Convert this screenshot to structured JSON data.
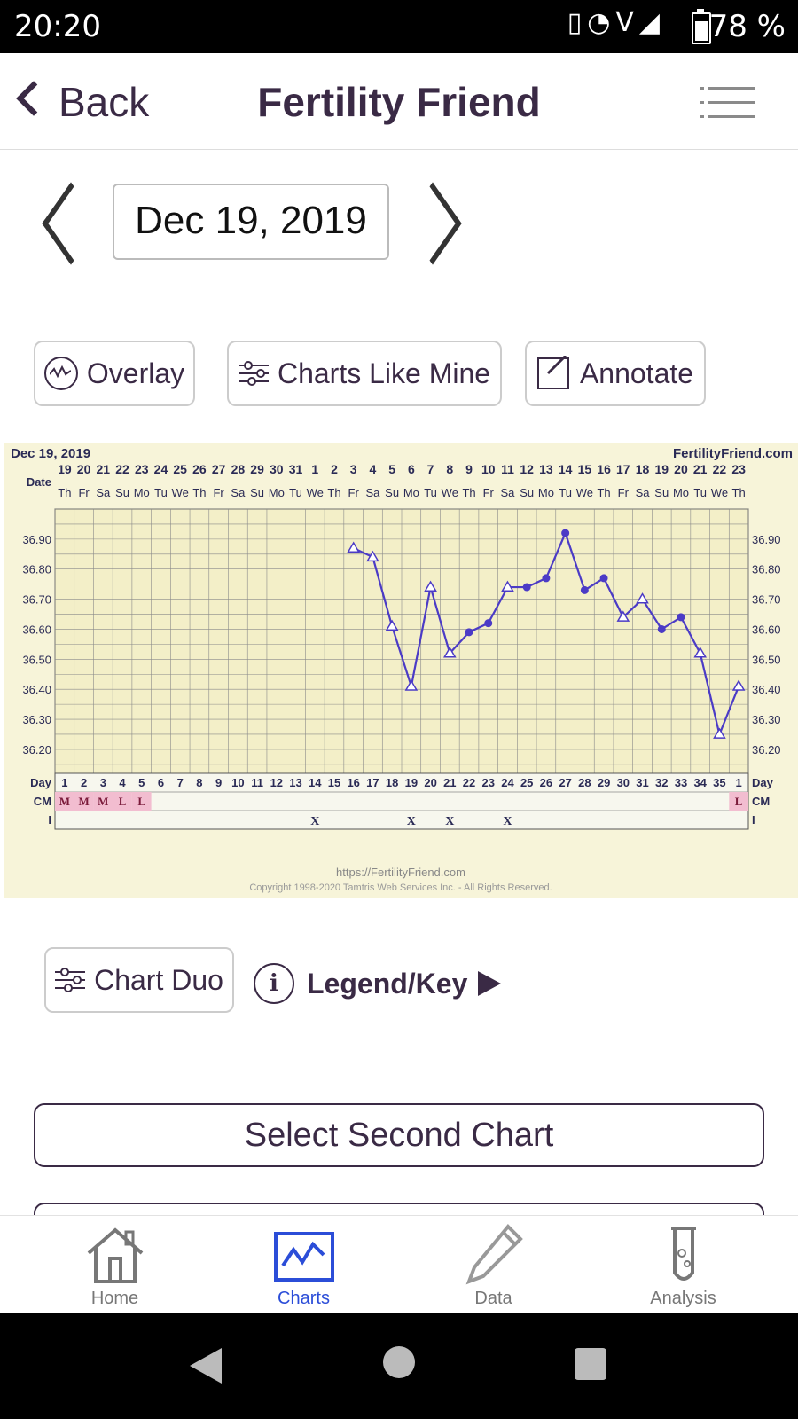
{
  "status_bar": {
    "time": "20:20",
    "battery": "78 %",
    "icons": [
      "vibrate-icon",
      "wifi-icon",
      "volte-icon",
      "lte-icon",
      "signal-icon",
      "battery-icon"
    ]
  },
  "app_bar": {
    "back_label": "Back",
    "title": "Fertility Friend"
  },
  "date_nav": {
    "current_date": "Dec 19, 2019"
  },
  "buttons": {
    "overlay": "Overlay",
    "charts_like_mine": "Charts Like Mine",
    "annotate": "Annotate",
    "chart_duo": "Chart Duo",
    "legend_key": "Legend/Key",
    "select_second_chart": "Select Second Chart"
  },
  "tabs": [
    {
      "label": "Home",
      "icon": "home-icon"
    },
    {
      "label": "Charts",
      "icon": "chart-icon",
      "active": true
    },
    {
      "label": "Data",
      "icon": "pencil-icon"
    },
    {
      "label": "Analysis",
      "icon": "test-tube-icon"
    }
  ],
  "colors": {
    "accent": "#3a2a45",
    "active_tab": "#2b4dd8",
    "chart_bg": "#f7f4d9",
    "series": "#4b3bc6",
    "cm_highlight": "#f2bdd0"
  },
  "chart_data": {
    "type": "line",
    "header_left": "Dec 19, 2019",
    "header_right": "FertilityFriend.com",
    "row_labels": {
      "date": "Date",
      "day": "Day",
      "cm": "CM",
      "i": "I"
    },
    "dates": [
      "19",
      "20",
      "21",
      "22",
      "23",
      "24",
      "25",
      "26",
      "27",
      "28",
      "29",
      "30",
      "31",
      "1",
      "2",
      "3",
      "4",
      "5",
      "6",
      "7",
      "8",
      "9",
      "10",
      "11",
      "12",
      "13",
      "14",
      "15",
      "16",
      "17",
      "18",
      "19",
      "20",
      "21",
      "22",
      "23"
    ],
    "weekdays": [
      "Th",
      "Fr",
      "Sa",
      "Su",
      "Mo",
      "Tu",
      "We",
      "Th",
      "Fr",
      "Sa",
      "Su",
      "Mo",
      "Tu",
      "We",
      "Th",
      "Fr",
      "Sa",
      "Su",
      "Mo",
      "Tu",
      "We",
      "Th",
      "Fr",
      "Sa",
      "Su",
      "Mo",
      "Tu",
      "We",
      "Th",
      "Fr",
      "Sa",
      "Su",
      "Mo",
      "Tu",
      "We",
      "Th"
    ],
    "days": [
      "1",
      "2",
      "3",
      "4",
      "5",
      "6",
      "7",
      "8",
      "9",
      "10",
      "11",
      "12",
      "13",
      "14",
      "15",
      "16",
      "17",
      "18",
      "19",
      "20",
      "21",
      "22",
      "23",
      "24",
      "25",
      "26",
      "27",
      "28",
      "29",
      "30",
      "31",
      "32",
      "33",
      "34",
      "35",
      "1"
    ],
    "cm": [
      "M",
      "M",
      "M",
      "L",
      "L",
      "",
      "",
      "",
      "",
      "",
      "",
      "",
      "",
      "",
      "",
      "",
      "",
      "",
      "",
      "",
      "",
      "",
      "",
      "",
      "",
      "",
      "",
      "",
      "",
      "",
      "",
      "",
      "",
      "",
      "",
      "L"
    ],
    "intercourse": [
      "",
      "",
      "",
      "",
      "",
      "",
      "",
      "",
      "",
      "",
      "",
      "",
      "",
      "X",
      "",
      "",
      "",
      "",
      "X",
      "",
      "X",
      "",
      "",
      "X",
      "",
      "",
      "",
      "",
      "",
      "",
      "",
      "",
      "",
      "",
      "",
      ""
    ],
    "y_ticks": [
      "36.90",
      "36.80",
      "36.70",
      "36.60",
      "36.50",
      "36.40",
      "36.30",
      "36.20"
    ],
    "ylim": [
      36.12,
      37.0
    ],
    "temps": [
      null,
      null,
      null,
      null,
      null,
      null,
      null,
      null,
      null,
      null,
      null,
      null,
      null,
      null,
      null,
      36.87,
      36.84,
      36.61,
      36.41,
      36.74,
      36.52,
      36.59,
      36.62,
      36.74,
      36.74,
      36.77,
      36.92,
      36.73,
      36.77,
      36.64,
      36.7,
      36.6,
      36.64,
      36.52,
      36.25,
      36.41
    ],
    "markers": [
      "",
      "",
      "",
      "",
      "",
      "",
      "",
      "",
      "",
      "",
      "",
      "",
      "",
      "",
      "",
      "open",
      "open",
      "open",
      "open",
      "open",
      "open",
      "filled",
      "filled",
      "open",
      "filled",
      "filled",
      "filled",
      "filled",
      "filled",
      "open",
      "open",
      "filled",
      "filled",
      "open",
      "open",
      "open"
    ],
    "footer_url": "https://FertilityFriend.com",
    "footer_copyright": "Copyright 1998-2020 Tamtris Web Services Inc. - All Rights Reserved."
  }
}
